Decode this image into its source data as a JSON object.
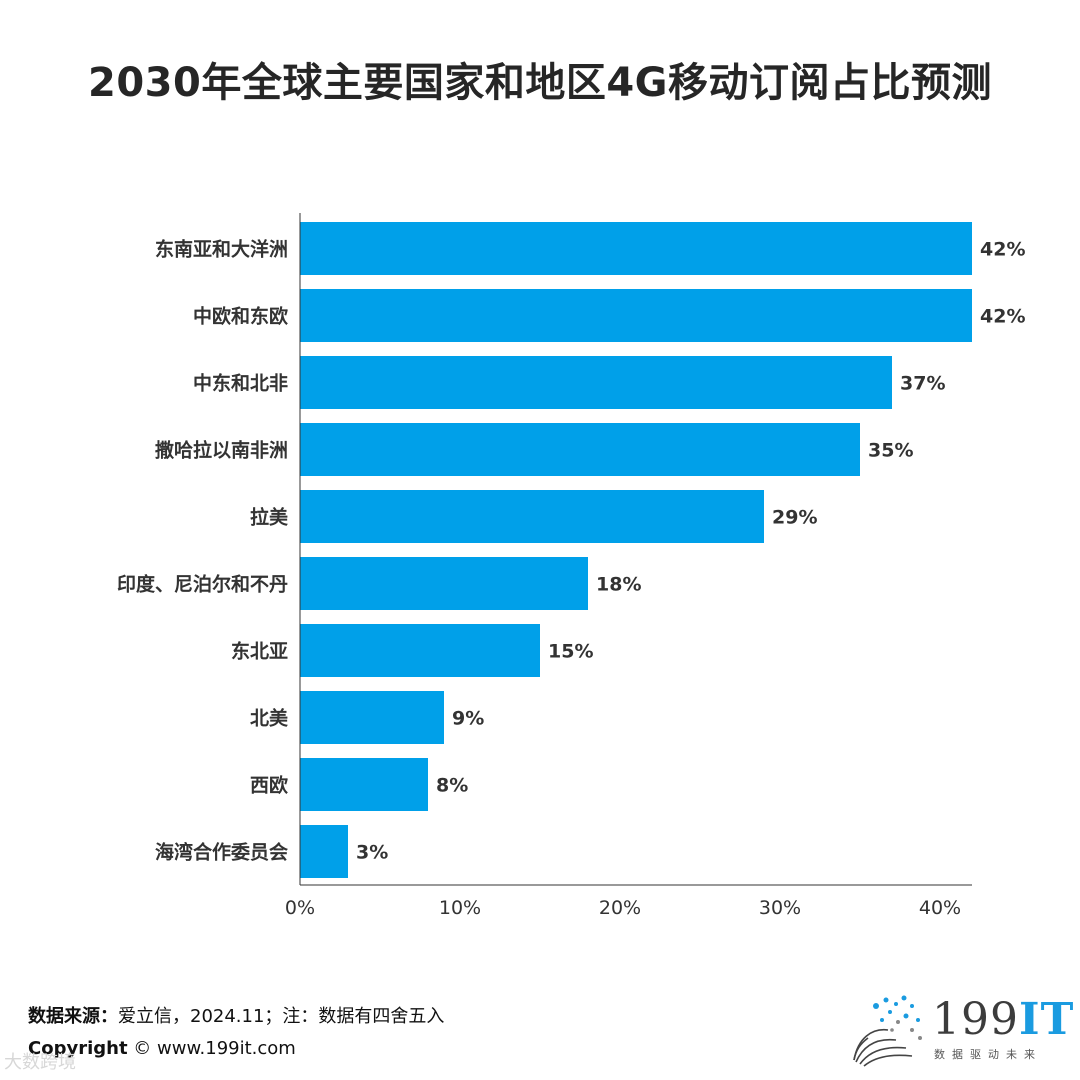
{
  "title": "2030年全球主要国家和地区4G移动订阅占比预测",
  "chart_data": {
    "type": "bar",
    "orientation": "horizontal",
    "title": "2030年全球主要国家和地区4G移动订阅占比预测",
    "categories": [
      "东南亚和大洋洲",
      "中欧和东欧",
      "中东和北非",
      "撒哈拉以南非洲",
      "拉美",
      "印度、尼泊尔和不丹",
      "东北亚",
      "北美",
      "西欧",
      "海湾合作委员会"
    ],
    "values": [
      42,
      42,
      37,
      35,
      29,
      18,
      15,
      9,
      8,
      3
    ],
    "value_labels": [
      "42%",
      "42%",
      "37%",
      "35%",
      "29%",
      "18%",
      "15%",
      "9%",
      "8%",
      "3%"
    ],
    "x_ticks": [
      0,
      10,
      20,
      30,
      40
    ],
    "x_tick_labels": [
      "0%",
      "10%",
      "20%",
      "30%",
      "40%"
    ],
    "xlim": [
      0,
      42
    ],
    "bar_color": "#00a0e9",
    "grid": false
  },
  "footer": {
    "source_label": "数据来源：",
    "source_text": "爱立信，2024.11；注：数据有四舍五入",
    "copyright_label": "Copyright",
    "copyright_text": "© www.199it.com"
  },
  "logo": {
    "digits": "199",
    "it": "IT",
    "slogan": "数据驱动未来"
  },
  "watermark": "大数跨境",
  "colors": {
    "bar": "#00a0e9",
    "logo_accent": "#1a9be0"
  }
}
